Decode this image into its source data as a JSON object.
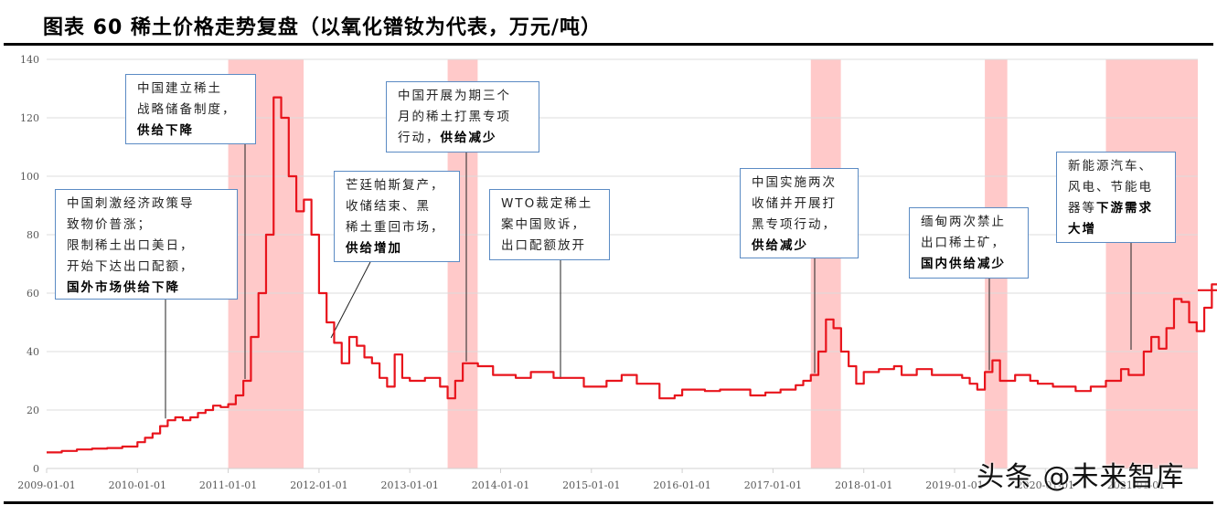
{
  "title": "图表 60 稀土价格走势复盘（以氧化镨钕为代表，万元/吨）",
  "watermark": "头条 @未来智库",
  "chart_data": {
    "type": "line",
    "title": "图表 60 稀土价格走势复盘（以氧化镨钕为代表，万元/吨）",
    "xlabel": "",
    "ylabel": "万元/吨",
    "ylim": [
      0,
      140
    ],
    "yticks": [
      0,
      20,
      40,
      60,
      80,
      100,
      120,
      140
    ],
    "xticks": [
      "2009-01-01",
      "2010-01-01",
      "2011-01-01",
      "2012-01-01",
      "2013-01-01",
      "2014-01-01",
      "2015-01-01",
      "2016-01-01",
      "2017-01-01",
      "2018-01-01",
      "2019-01-01",
      "2020-01-01",
      "2021-01-01"
    ],
    "grid": true,
    "legend": "none",
    "series": [
      {
        "name": "氧化镨钕价格",
        "color": "#e8141c",
        "points": [
          [
            "2009-01",
            5.5
          ],
          [
            "2009-03",
            6
          ],
          [
            "2009-05",
            6.5
          ],
          [
            "2009-07",
            6.8
          ],
          [
            "2009-09",
            7
          ],
          [
            "2009-11",
            7.5
          ],
          [
            "2010-01",
            9
          ],
          [
            "2010-02",
            10.5
          ],
          [
            "2010-03",
            12
          ],
          [
            "2010-04",
            14.5
          ],
          [
            "2010-05",
            16.5
          ],
          [
            "2010-06",
            17.5
          ],
          [
            "2010-07",
            16.5
          ],
          [
            "2010-08",
            17.5
          ],
          [
            "2010-09",
            19
          ],
          [
            "2010-10",
            20
          ],
          [
            "2010-11",
            21.5
          ],
          [
            "2010-12",
            21
          ],
          [
            "2011-01",
            22
          ],
          [
            "2011-02",
            25
          ],
          [
            "2011-03",
            30
          ],
          [
            "2011-04",
            45
          ],
          [
            "2011-05",
            60
          ],
          [
            "2011-06",
            80
          ],
          [
            "2011-07",
            127
          ],
          [
            "2011-08",
            120
          ],
          [
            "2011-09",
            100
          ],
          [
            "2011-10",
            88
          ],
          [
            "2011-11",
            92
          ],
          [
            "2011-12",
            80
          ],
          [
            "2012-01",
            60
          ],
          [
            "2012-02",
            50
          ],
          [
            "2012-03",
            43
          ],
          [
            "2012-04",
            36
          ],
          [
            "2012-05",
            45
          ],
          [
            "2012-06",
            42
          ],
          [
            "2012-07",
            38
          ],
          [
            "2012-08",
            36
          ],
          [
            "2012-09",
            31
          ],
          [
            "2012-10",
            28
          ],
          [
            "2012-11",
            39
          ],
          [
            "2012-12",
            31
          ],
          [
            "2013-01",
            30
          ],
          [
            "2013-03",
            31
          ],
          [
            "2013-05",
            28
          ],
          [
            "2013-06",
            24
          ],
          [
            "2013-07",
            30
          ],
          [
            "2013-08",
            36
          ],
          [
            "2013-10",
            35
          ],
          [
            "2013-12",
            32
          ],
          [
            "2014-03",
            31
          ],
          [
            "2014-05",
            33
          ],
          [
            "2014-08",
            31
          ],
          [
            "2014-10",
            31
          ],
          [
            "2014-12",
            28
          ],
          [
            "2015-03",
            30
          ],
          [
            "2015-05",
            32
          ],
          [
            "2015-07",
            29
          ],
          [
            "2015-10",
            24
          ],
          [
            "2015-12",
            25
          ],
          [
            "2016-01",
            27
          ],
          [
            "2016-04",
            26.5
          ],
          [
            "2016-06",
            27
          ],
          [
            "2016-10",
            25
          ],
          [
            "2016-12",
            26
          ],
          [
            "2017-02",
            27
          ],
          [
            "2017-04",
            28.5
          ],
          [
            "2017-05",
            30
          ],
          [
            "2017-06",
            32
          ],
          [
            "2017-07",
            40
          ],
          [
            "2017-08",
            51
          ],
          [
            "2017-09",
            48
          ],
          [
            "2017-10",
            40
          ],
          [
            "2017-11",
            35
          ],
          [
            "2017-12",
            29
          ],
          [
            "2018-01",
            33
          ],
          [
            "2018-03",
            34
          ],
          [
            "2018-05",
            35
          ],
          [
            "2018-06",
            32
          ],
          [
            "2018-08",
            34
          ],
          [
            "2018-10",
            32
          ],
          [
            "2018-12",
            32
          ],
          [
            "2019-02",
            31
          ],
          [
            "2019-03",
            29
          ],
          [
            "2019-04",
            27
          ],
          [
            "2019-05",
            33
          ],
          [
            "2019-06",
            37
          ],
          [
            "2019-07",
            30
          ],
          [
            "2019-09",
            32
          ],
          [
            "2019-11",
            30
          ],
          [
            "2019-12",
            29
          ],
          [
            "2020-02",
            28
          ],
          [
            "2020-05",
            26.5
          ],
          [
            "2020-07",
            28
          ],
          [
            "2020-09",
            30
          ],
          [
            "2020-11",
            34
          ],
          [
            "2020-12",
            32
          ],
          [
            "2021-02",
            40
          ],
          [
            "2021-03",
            45
          ],
          [
            "2021-04",
            41
          ],
          [
            "2021-05",
            48
          ],
          [
            "2021-06",
            58
          ],
          [
            "2021-07",
            57
          ],
          [
            "2021-08",
            50
          ],
          [
            "2021-09",
            47
          ],
          [
            "2021-10",
            55
          ],
          [
            "2021-11",
            63
          ],
          [
            "2021-12",
            61
          ]
        ]
      }
    ],
    "shaded_periods": [
      {
        "start": "2011-01",
        "end": "2011-10",
        "color": "#ffc9c9"
      },
      {
        "start": "2013-06",
        "end": "2013-09",
        "color": "#ffc9c9"
      },
      {
        "start": "2017-06",
        "end": "2017-09",
        "color": "#ffc9c9"
      },
      {
        "start": "2019-05",
        "end": "2019-07",
        "color": "#ffc9c9"
      },
      {
        "start": "2020-09",
        "end": "2021-12",
        "color": "#ffc9c9"
      }
    ],
    "annotations": [
      {
        "id": "a1",
        "lines": [
          "中国刺激经济政策导",
          "致物价普涨；",
          "限制稀土出口美日，",
          "开始下达出口配额，"
        ],
        "bold": "国外市场供给下降",
        "pointer_date": "2010-05"
      },
      {
        "id": "a2",
        "lines": [
          "中国建立稀土",
          "战略储备制度，"
        ],
        "bold": "供给下降",
        "pointer_date": "2011-03"
      },
      {
        "id": "a3",
        "lines": [
          "芒廷帕斯复产，",
          "收储结束、黑",
          "稀土重回市场，"
        ],
        "bold": "供给增加",
        "pointer_date": "2012-03"
      },
      {
        "id": "a4",
        "lines": [
          "中国开展为期三个",
          "月的稀土打黑专项"
        ],
        "prefix": "行动，",
        "bold": "供给减少",
        "pointer_date": "2013-08"
      },
      {
        "id": "a5",
        "lines": [
          "WTO裁定稀土",
          "案中国败诉，",
          "出口配额放开"
        ],
        "bold": "",
        "pointer_date": "2014-09"
      },
      {
        "id": "a6",
        "lines": [
          "中国实施两次",
          "收储并开展打",
          "黑专项行动，"
        ],
        "bold": "供给减少",
        "pointer_date": "2017-06"
      },
      {
        "id": "a7",
        "lines": [
          "缅甸两次禁止",
          "出口稀土矿，"
        ],
        "bold": "国内供给减少",
        "pointer_date": "2019-05"
      },
      {
        "id": "a8",
        "lines": [
          "新能源汽车、",
          "风电、节能电"
        ],
        "prefix": "器等",
        "bold": "下游需求",
        "tail_bold": "大增",
        "pointer_date": "2021-02"
      }
    ]
  }
}
